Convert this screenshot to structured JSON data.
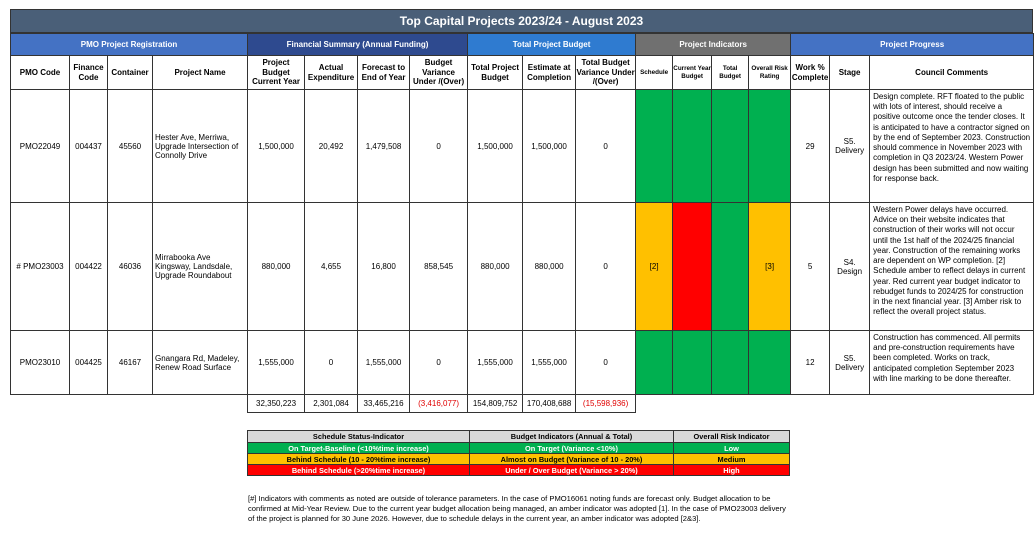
{
  "title": "Top Capital Projects 2023/24 - August 2023",
  "groups": {
    "pmo": "PMO Project Registration",
    "financial": "Financial Summary (Annual Funding)",
    "total_budget": "Total Project Budget",
    "indicators": "Project Indicators",
    "progress": "Project Progress"
  },
  "columns": {
    "pmo_code": "PMO Code",
    "finance_code": "Finance Code",
    "container": "Container",
    "project_name": "Project Name",
    "project_budget": "Project Budget Current Year",
    "actual_expenditure": "Actual Expenditure",
    "forecast": "Forecast to End of Year",
    "budget_variance": "Budget Variance Under /(Over)",
    "total_project_budget": "Total Project Budget",
    "estimate_completion": "Estimate at Completion",
    "total_budget_variance": "Total Budget Variance Under /(Over)",
    "schedule": "Schedule",
    "current_year_budget": "Current Year Budget",
    "total_budget": "Total Budget",
    "overall_risk": "Overall Risk Rating",
    "work_complete": "Work % Complete",
    "stage": "Stage",
    "council_comments": "Council Comments"
  },
  "rows": [
    {
      "pmo_code": "PMO22049",
      "finance_code": "004437",
      "container": "45560",
      "project_name": "Hester Ave, Merriwa, Upgrade Intersection of Connolly Drive",
      "project_budget": "1,500,000",
      "actual_expenditure": "20,492",
      "forecast": "1,479,508",
      "budget_variance": "0",
      "total_project_budget": "1,500,000",
      "estimate_completion": "1,500,000",
      "total_budget_variance": "0",
      "indicators": {
        "schedule": {
          "color": "green",
          "note": ""
        },
        "current_year_budget": {
          "color": "green",
          "note": ""
        },
        "total_budget": {
          "color": "green",
          "note": ""
        },
        "overall_risk": {
          "color": "green",
          "note": ""
        }
      },
      "work_complete": "29",
      "stage": "S5. Delivery",
      "comment": "Design complete. RFT floated to the public with lots of interest, should receive a positive outcome once the tender closes. It is anticipated to have a contractor signed on by the end of September 2023. Construction should commence in November 2023 with completion in Q3 2023/24. Western Power design has been submitted and now waiting for response back."
    },
    {
      "pmo_code": "# PMO23003",
      "finance_code": "004422",
      "container": "46036",
      "project_name": "Mirrabooka Ave Kingsway, Landsdale, Upgrade Roundabout",
      "project_budget": "880,000",
      "actual_expenditure": "4,655",
      "forecast": "16,800",
      "budget_variance": "858,545",
      "total_project_budget": "880,000",
      "estimate_completion": "880,000",
      "total_budget_variance": "0",
      "indicators": {
        "schedule": {
          "color": "amber",
          "note": "[2]"
        },
        "current_year_budget": {
          "color": "red",
          "note": ""
        },
        "total_budget": {
          "color": "green",
          "note": ""
        },
        "overall_risk": {
          "color": "amber",
          "note": "[3]"
        }
      },
      "work_complete": "5",
      "stage": "S4. Design",
      "comment": "Western Power delays have occurred. Advice on their website indicates that construction of their works will not occur until the 1st half of the 2024/25 financial year. Construction of the remaining works are dependent on WP completion. [2] Schedule amber to reflect delays in current year. Red current year budget indicator to rebudget funds to 2024/25 for construction in the next financial year. [3] Amber risk to reflect the overall project status."
    },
    {
      "pmo_code": "PMO23010",
      "finance_code": "004425",
      "container": "46167",
      "project_name": "Gnangara Rd, Madeley, Renew Road Surface",
      "project_budget": "1,555,000",
      "actual_expenditure": "0",
      "forecast": "1,555,000",
      "budget_variance": "0",
      "total_project_budget": "1,555,000",
      "estimate_completion": "1,555,000",
      "total_budget_variance": "0",
      "indicators": {
        "schedule": {
          "color": "green",
          "note": ""
        },
        "current_year_budget": {
          "color": "green",
          "note": ""
        },
        "total_budget": {
          "color": "green",
          "note": ""
        },
        "overall_risk": {
          "color": "green",
          "note": ""
        }
      },
      "work_complete": "12",
      "stage": "S5. Delivery",
      "comment": "Construction has commenced. All permits and pre-construction requirements have been completed. Works on track, anticipated completion September 2023 with line marking to be done thereafter."
    }
  ],
  "totals": {
    "project_budget": "32,350,223",
    "actual_expenditure": "2,301,084",
    "forecast": "33,465,216",
    "budget_variance": "(3,416,077)",
    "total_project_budget": "154,809,752",
    "estimate_completion": "170,408,688",
    "total_budget_variance": "(15,598,936)"
  },
  "legend": {
    "headers": [
      "Schedule Status-Indicator",
      "Budget Indicators (Annual & Total)",
      "Overall Risk Indicator"
    ],
    "rows": [
      {
        "level": "green",
        "schedule": "On Target-Baseline (<10%time increase)",
        "budget": "On Target (Variance <10%)",
        "risk": "Low"
      },
      {
        "level": "amber",
        "schedule": "Behind Schedule (10 - 20%time increase)",
        "budget": "Almost on Budget (Variance of 10 - 20%)",
        "risk": "Medium"
      },
      {
        "level": "red",
        "schedule": "Behind Schedule (>20%time increase)",
        "budget": "Under / Over Budget (Variance > 20%)",
        "risk": "High"
      }
    ]
  },
  "colors": {
    "green": "#00b050",
    "amber": "#ffc000",
    "red": "#ff0000",
    "title_bg": "#4a5f78"
  },
  "footnote": "[#] Indicators with comments as noted are outside of tolerance parameters. In the case of PMO16061 noting funds are forecast only. Budget allocation to be confirmed at Mid-Year Review. Due to the current year budget allocation being managed, an amber indicator was adopted [1]. In the case of PMO23003 delivery of the project is planned for 30 June 2026. However, due to schedule delays in the current year, an amber indicator was adopted [2&3]."
}
